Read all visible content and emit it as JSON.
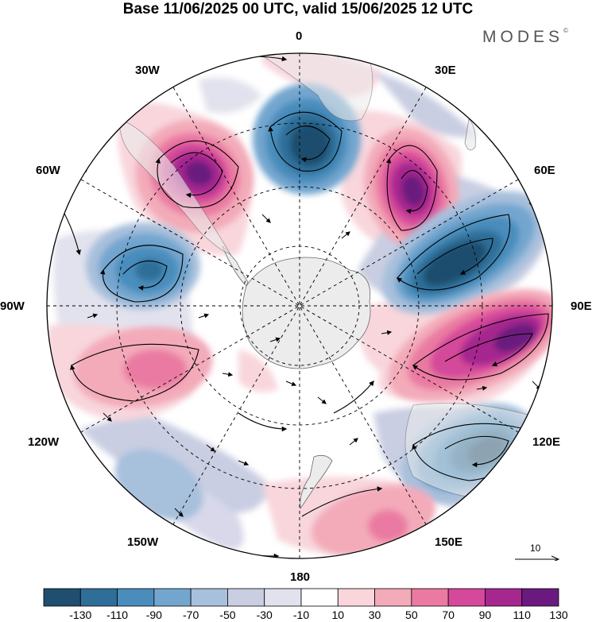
{
  "title": "Base 11/06/2025 00 UTC, valid 15/06/2025 12 UTC",
  "brand": "MODES",
  "brand_mark": "©",
  "longitude_labels": {
    "lon_0": "0",
    "lon_30e": "30E",
    "lon_60e": "60E",
    "lon_90e": "90E",
    "lon_120e": "120E",
    "lon_150e": "150E",
    "lon_180": "180",
    "lon_150w": "150W",
    "lon_120w": "120W",
    "lon_90w": "90W",
    "lon_60w": "60W",
    "lon_30w": "30W"
  },
  "reference_vector": "10",
  "colorbar": {
    "ticks": [
      "-130",
      "-110",
      "-90",
      "-70",
      "-50",
      "-30",
      "-10",
      "10",
      "30",
      "50",
      "70",
      "90",
      "110",
      "130"
    ],
    "colors": [
      "#1f4e6e",
      "#2f6e98",
      "#4a8dbc",
      "#73a6cf",
      "#a7c0dc",
      "#c9cee2",
      "#e2e2ee",
      "#ffffff",
      "#f8d6dc",
      "#f3aab9",
      "#ea7aa2",
      "#d5489a",
      "#a6288f",
      "#6a1a7e"
    ]
  },
  "map_colors": {
    "ocean_neutral": "#ffffff",
    "antarctica": "#ececec",
    "border": "#000000"
  }
}
